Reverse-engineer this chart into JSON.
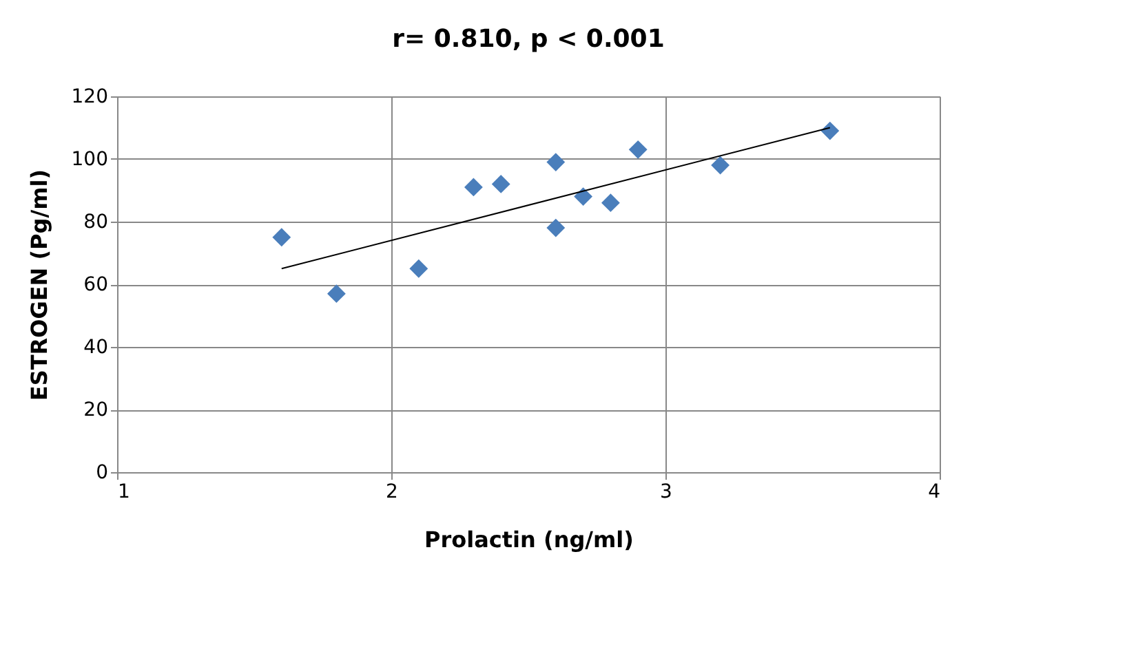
{
  "chart_data": {
    "type": "scatter",
    "title": "r= 0.810, p < 0.001",
    "xlabel": "Prolactin (ng/ml)",
    "ylabel": "ESTROGEN (Pg/ml)",
    "xlim": [
      1,
      4
    ],
    "xticks": [
      1,
      2,
      3,
      4
    ],
    "ylim": [
      0,
      120
    ],
    "yticks": [
      0,
      20,
      40,
      60,
      80,
      100,
      120
    ],
    "grid": true,
    "series": [
      {
        "marker": "diamond",
        "color": "#4a7ebb",
        "x": [
          1.6,
          1.8,
          2.1,
          2.3,
          2.4,
          2.6,
          2.6,
          2.7,
          2.8,
          2.9,
          3.2,
          3.6
        ],
        "values": [
          75,
          57,
          65,
          91,
          92,
          99,
          78,
          88,
          86,
          103,
          98,
          109
        ]
      },
      {
        "type": "line",
        "marker": "none",
        "color": "#000000",
        "x": [
          1.6,
          3.6
        ],
        "values": [
          65,
          110
        ]
      }
    ]
  }
}
